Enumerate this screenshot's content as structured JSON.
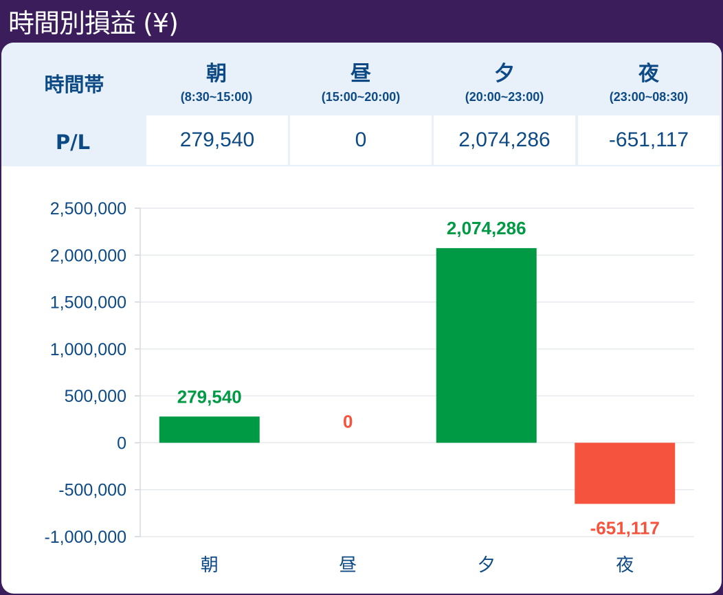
{
  "header": {
    "title": "時間別損益 (¥)"
  },
  "table": {
    "row_label_time": "時間帯",
    "row_label_pl": "P/L",
    "columns": [
      {
        "name": "朝",
        "time": "(8:30~15:00)",
        "pl": "279,540"
      },
      {
        "name": "昼",
        "time": "(15:00~20:00)",
        "pl": "0"
      },
      {
        "name": "夕",
        "time": "(20:00~23:00)",
        "pl": "2,074,286"
      },
      {
        "name": "夜",
        "time": "(23:00~08:30)",
        "pl": "-651,117"
      }
    ]
  },
  "colors": {
    "positive": "#009944",
    "negative": "#f5533d",
    "axis_text": "#0d4a85",
    "header_bg": "#3b1d5c"
  },
  "chart_data": {
    "type": "bar",
    "categories": [
      "朝",
      "昼",
      "夕",
      "夜"
    ],
    "values": [
      279540,
      0,
      2074286,
      -651117
    ],
    "data_labels": [
      "279,540",
      "0",
      "2,074,286",
      "-651,117"
    ],
    "ylim": [
      -1000000,
      2500000
    ],
    "yticks": [
      2500000,
      2000000,
      1500000,
      1000000,
      500000,
      0,
      -500000,
      -1000000
    ],
    "ytick_labels": [
      "2,500,000",
      "2,000,000",
      "1,500,000",
      "1,000,000",
      "500,000",
      "0",
      "-500,000",
      "-1,000,000"
    ],
    "grid": true,
    "title": "",
    "xlabel": "",
    "ylabel": ""
  }
}
